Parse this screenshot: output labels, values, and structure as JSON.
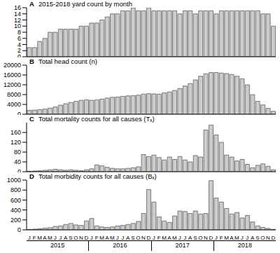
{
  "chart_data": [
    {
      "type": "bar",
      "panel_label": "A",
      "title": "2015-2018 yard count by month",
      "categories": [
        "J",
        "F",
        "M",
        "A",
        "M",
        "J",
        "J",
        "A",
        "S",
        "O",
        "N",
        "D",
        "J",
        "F",
        "M",
        "A",
        "M",
        "J",
        "J",
        "A",
        "S",
        "O",
        "N",
        "D",
        "J",
        "F",
        "M",
        "A",
        "M",
        "J",
        "J",
        "A",
        "S",
        "O",
        "N",
        "D",
        "J",
        "F",
        "M",
        "A",
        "M",
        "J",
        "J",
        "A",
        "S",
        "O",
        "N",
        "D"
      ],
      "values": [
        3,
        3,
        5,
        6,
        8,
        8,
        9,
        9,
        9,
        9,
        10,
        10,
        11,
        11,
        12,
        13,
        14,
        14,
        15,
        15,
        16,
        15,
        15,
        16,
        15,
        15,
        15,
        15,
        15,
        14,
        15,
        15,
        14,
        15,
        15,
        15,
        14,
        15,
        15,
        15,
        15,
        15,
        15,
        15,
        15,
        14,
        14,
        10
      ],
      "color": "#cccccc",
      "ylim": [
        0,
        16
      ],
      "yticks": [
        0,
        2,
        4,
        6,
        8,
        10,
        12,
        14,
        16
      ],
      "grid": false,
      "tick_labels": "y"
    },
    {
      "type": "bar",
      "panel_label": "B",
      "title": "Total head count (n)",
      "categories": [
        "J",
        "F",
        "M",
        "A",
        "M",
        "J",
        "J",
        "A",
        "S",
        "O",
        "N",
        "D",
        "J",
        "F",
        "M",
        "A",
        "M",
        "J",
        "J",
        "A",
        "S",
        "O",
        "N",
        "D",
        "J",
        "F",
        "M",
        "A",
        "M",
        "J",
        "J",
        "A",
        "S",
        "O",
        "N",
        "D",
        "J",
        "F",
        "M",
        "A",
        "M",
        "J",
        "J",
        "A",
        "S",
        "O",
        "N",
        "D"
      ],
      "values": [
        1600,
        1700,
        1900,
        2100,
        2500,
        3000,
        3700,
        4300,
        4800,
        5300,
        5700,
        5900,
        5700,
        5900,
        6200,
        6600,
        6900,
        7000,
        7300,
        7500,
        7600,
        7800,
        8200,
        8400,
        8300,
        8200,
        8700,
        9100,
        9700,
        10500,
        11500,
        12500,
        14000,
        15500,
        16500,
        17000,
        17000,
        16800,
        16600,
        16200,
        15500,
        14500,
        12000,
        8000,
        5300,
        3800,
        2400,
        1200
      ],
      "color": "#cccccc",
      "ylim": [
        0,
        20000
      ],
      "yticks": [
        0,
        4000,
        8000,
        12000,
        16000,
        20000
      ],
      "grid": false,
      "tick_labels": "y"
    },
    {
      "type": "bar",
      "panel_label": "C",
      "title": "Total mortality counts for all causes (Tₓ)",
      "categories": [
        "J",
        "F",
        "M",
        "A",
        "M",
        "J",
        "J",
        "A",
        "S",
        "O",
        "N",
        "D",
        "J",
        "F",
        "M",
        "A",
        "M",
        "J",
        "J",
        "A",
        "S",
        "O",
        "N",
        "D",
        "J",
        "F",
        "M",
        "A",
        "M",
        "J",
        "J",
        "A",
        "S",
        "O",
        "N",
        "D",
        "J",
        "F",
        "M",
        "A",
        "M",
        "J",
        "J",
        "A",
        "S",
        "O",
        "N",
        "D"
      ],
      "values": [
        2,
        3,
        4,
        6,
        8,
        10,
        8,
        6,
        8,
        6,
        4,
        8,
        12,
        28,
        24,
        18,
        14,
        12,
        12,
        14,
        16,
        20,
        70,
        62,
        68,
        58,
        48,
        60,
        50,
        62,
        48,
        40,
        66,
        60,
        170,
        190,
        150,
        120,
        68,
        60,
        44,
        50,
        30,
        16,
        26,
        32,
        22,
        8
      ],
      "color": "#cccccc",
      "ylim": [
        0,
        200
      ],
      "yticks": [
        0,
        40,
        80,
        120,
        160
      ],
      "grid": false,
      "tick_labels": "y"
    },
    {
      "type": "bar",
      "panel_label": "D",
      "title": "Total morbidity counts for all causes (Bₓ)",
      "categories": [
        "J",
        "F",
        "M",
        "A",
        "M",
        "J",
        "J",
        "A",
        "S",
        "O",
        "N",
        "D",
        "J",
        "F",
        "M",
        "A",
        "M",
        "J",
        "J",
        "A",
        "S",
        "O",
        "N",
        "D",
        "J",
        "F",
        "M",
        "A",
        "M",
        "J",
        "J",
        "A",
        "S",
        "O",
        "N",
        "D",
        "J",
        "F",
        "M",
        "A",
        "M",
        "J",
        "J",
        "A",
        "S",
        "O",
        "N",
        "D"
      ],
      "values": [
        10,
        15,
        25,
        35,
        45,
        70,
        80,
        110,
        130,
        100,
        90,
        180,
        230,
        80,
        60,
        50,
        60,
        80,
        90,
        110,
        130,
        170,
        330,
        810,
        560,
        260,
        180,
        150,
        280,
        380,
        370,
        330,
        380,
        320,
        330,
        990,
        640,
        560,
        430,
        320,
        350,
        240,
        290,
        160,
        80,
        50,
        30,
        10
      ],
      "color": "#cccccc",
      "ylim": [
        0,
        1000
      ],
      "yticks": [
        0,
        200,
        400,
        600,
        800,
        1000
      ],
      "grid": false,
      "x_group_labels": [
        "2015",
        "2016",
        "2017",
        "2018"
      ]
    }
  ]
}
